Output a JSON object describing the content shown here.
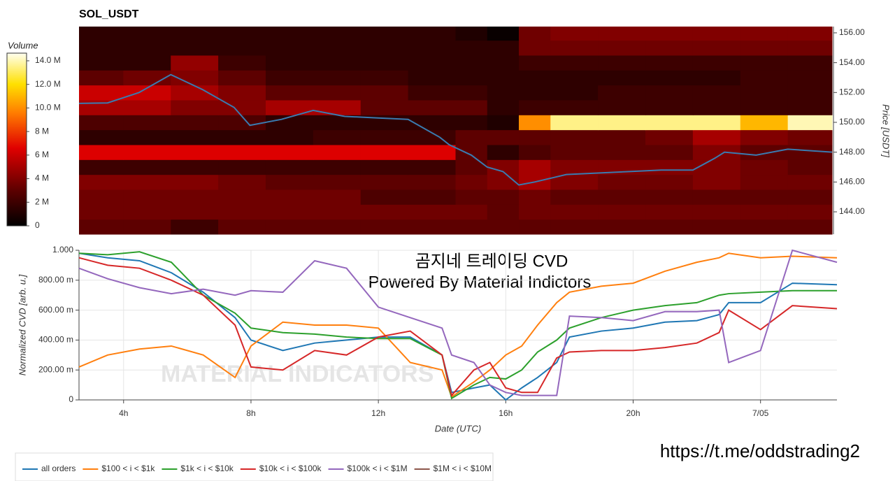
{
  "chart_data": [
    {
      "type": "heatmap",
      "title": "SOL_USDT",
      "colorbar_title": "Volume",
      "y2_label": "Price [USDT]",
      "x_bins": [
        2.6,
        4,
        5.5,
        7,
        8.5,
        10,
        11.5,
        13,
        14.5,
        15.5,
        16.5,
        17.5,
        19,
        20.5,
        22,
        23.5,
        25,
        26.4
      ],
      "y_bins": [
        142.5,
        143.5,
        144.5,
        145.5,
        146.5,
        147.5,
        148.5,
        149.5,
        150.5,
        151.5,
        152.5,
        153.5,
        154.5,
        155.5,
        156.5
      ],
      "z": [
        [
          3,
          3,
          2,
          3,
          3,
          3,
          3,
          3,
          3,
          3,
          3,
          3,
          3,
          3,
          3,
          3,
          3
        ],
        [
          3.5,
          3.5,
          3.5,
          3.5,
          3.5,
          3.5,
          3.5,
          3.5,
          3.5,
          3,
          3.5,
          3.5,
          3.5,
          3.5,
          3.5,
          3.5,
          3.5
        ],
        [
          3.5,
          3.5,
          3.5,
          3.5,
          3.5,
          3.5,
          2.5,
          2.5,
          3,
          3,
          3.5,
          3,
          3,
          3,
          3,
          3,
          3
        ],
        [
          4,
          4,
          4,
          3.5,
          3,
          3,
          3,
          3,
          3.5,
          4,
          5,
          4,
          3.5,
          3.5,
          4,
          3.5,
          3.5
        ],
        [
          2,
          2,
          2,
          2,
          2,
          2,
          2,
          2,
          3,
          4,
          5,
          4,
          4,
          4,
          4,
          3.5,
          3
        ],
        [
          6.5,
          6.5,
          6.5,
          6.5,
          6.5,
          6.5,
          6.5,
          6.5,
          3,
          1.5,
          2.5,
          3,
          3,
          3,
          4,
          3,
          3
        ],
        [
          1.5,
          1.5,
          1.5,
          1.5,
          1.5,
          2,
          2,
          2,
          3,
          3,
          3,
          3,
          3,
          3.5,
          5,
          4,
          3.5
        ],
        [
          2.5,
          2.5,
          2.5,
          2.5,
          1.5,
          1.5,
          1.5,
          1.5,
          1.5,
          1,
          10,
          13.5,
          13.5,
          13.5,
          13.5,
          11,
          14
        ],
        [
          5,
          5,
          4,
          4,
          5,
          5,
          3,
          3,
          3,
          1.5,
          2,
          2,
          2,
          2,
          2,
          2,
          2
        ],
        [
          6,
          6,
          5,
          4,
          3,
          3,
          3,
          2,
          2,
          1.5,
          1.5,
          1.5,
          2,
          2,
          2,
          2,
          2
        ],
        [
          3,
          3.5,
          4,
          3,
          2,
          2,
          2,
          1.5,
          1.5,
          1.5,
          1.5,
          1.5,
          1.5,
          1.5,
          1.5,
          2,
          2
        ],
        [
          1.5,
          1.5,
          4.5,
          2,
          1.5,
          1.5,
          1.5,
          1.5,
          1.5,
          1.5,
          2,
          2,
          2,
          2,
          2,
          2,
          2
        ],
        [
          1.5,
          1.5,
          1.5,
          1.5,
          1.5,
          1.5,
          1.5,
          1.5,
          1.5,
          1.5,
          3.5,
          3.5,
          3.5,
          3.5,
          3.5,
          3.5,
          3.5
        ],
        [
          1.5,
          1.5,
          1.5,
          1.5,
          1.5,
          1.5,
          1.5,
          1.5,
          1,
          0.3,
          3.5,
          4,
          4,
          4,
          4,
          4,
          4
        ]
      ],
      "zlim": [
        0,
        14.65
      ],
      "zticks": [
        {
          "value": 0,
          "label": "0"
        },
        {
          "value": 2,
          "label": "2 M"
        },
        {
          "value": 4,
          "label": "4 M"
        },
        {
          "value": 6,
          "label": "6 M"
        },
        {
          "value": 8,
          "label": "8 M"
        },
        {
          "value": 10,
          "label": "10.0 M"
        },
        {
          "value": 12,
          "label": "12.0 M"
        },
        {
          "value": 14,
          "label": "14.0 M"
        }
      ],
      "xlim": [
        2.6,
        26.4
      ],
      "y2lim": [
        142.5,
        156.42
      ],
      "y2ticks": [
        {
          "value": 144,
          "label": "144.00"
        },
        {
          "value": 146,
          "label": "146.00"
        },
        {
          "value": 148,
          "label": "148.00"
        },
        {
          "value": 150,
          "label": "150.00"
        },
        {
          "value": 152,
          "label": "152.00"
        },
        {
          "value": 154,
          "label": "154.00"
        },
        {
          "value": 156,
          "label": "156.00"
        }
      ],
      "x": [
        2.6,
        3.5,
        4.5,
        5.5,
        6.5,
        7.5,
        8,
        9,
        10,
        11,
        12,
        13,
        14,
        14.3,
        15,
        15.5,
        16,
        16.5,
        17,
        17.6,
        18,
        19,
        20,
        21,
        22,
        22.7,
        23,
        24,
        25,
        26.4
      ],
      "line": {
        "color": "#3a7bb0",
        "values": [
          151.27,
          151.3,
          152.0,
          153.2,
          152.2,
          151.0,
          149.8,
          150.2,
          150.8,
          150.4,
          150.3,
          150.2,
          149.0,
          148.5,
          147.8,
          147.0,
          146.7,
          145.8,
          146.0,
          146.3,
          146.5,
          146.6,
          146.7,
          146.8,
          146.8,
          147.6,
          148.0,
          147.8,
          148.2,
          148.0
        ]
      }
    },
    {
      "type": "line",
      "xlabel": "Date (UTC)",
      "ylabel": "Normalized CVD [arb. u.]",
      "annotations": [
        "곰지네 트레이딩 CVD",
        "Powered By Material Indictors"
      ],
      "watermark": "MATERIAL INDICATORS",
      "footer": "https://t.me/oddstrading2",
      "xlim": [
        2.6,
        26.4
      ],
      "xticks": [
        {
          "value": 4,
          "label": "4h"
        },
        {
          "value": 8,
          "label": "8h"
        },
        {
          "value": 12,
          "label": "12h"
        },
        {
          "value": 16,
          "label": "16h"
        },
        {
          "value": 20,
          "label": "20h"
        },
        {
          "value": 24,
          "label": "7/05"
        }
      ],
      "ylim": [
        0,
        1
      ],
      "yticks": [
        0,
        {
          "value": 0.2,
          "label": "200.00 m"
        },
        {
          "value": 0.4,
          "label": "400.00 m"
        },
        {
          "value": 0.6,
          "label": "600.00 m"
        },
        {
          "value": 0.8,
          "label": "800.00 m"
        },
        {
          "value": 1,
          "label": "1.000"
        }
      ],
      "grid": true,
      "x": [
        2.6,
        3.5,
        4.5,
        5.5,
        6.5,
        7.5,
        8,
        9,
        10,
        11,
        12,
        13,
        14,
        14.3,
        15,
        15.5,
        16,
        16.5,
        17,
        17.6,
        18,
        19,
        20,
        21,
        22,
        22.7,
        23,
        24,
        25,
        26.4
      ],
      "series": [
        {
          "name": "all orders",
          "color": "#1f77b4",
          "values": [
            0.98,
            0.95,
            0.93,
            0.85,
            0.72,
            0.55,
            0.4,
            0.33,
            0.38,
            0.4,
            0.42,
            0.42,
            0.3,
            0.05,
            0.08,
            0.1,
            0.0,
            0.08,
            0.15,
            0.25,
            0.42,
            0.46,
            0.48,
            0.52,
            0.53,
            0.57,
            0.65,
            0.65,
            0.78,
            0.77
          ]
        },
        {
          "name": "$100 < i < $1k",
          "color": "#ff7f0e",
          "values": [
            0.22,
            0.3,
            0.34,
            0.36,
            0.3,
            0.15,
            0.36,
            0.52,
            0.5,
            0.5,
            0.48,
            0.25,
            0.2,
            0.02,
            0.12,
            0.2,
            0.3,
            0.36,
            0.5,
            0.65,
            0.72,
            0.76,
            0.78,
            0.86,
            0.92,
            0.95,
            0.98,
            0.95,
            0.96,
            0.95
          ]
        },
        {
          "name": "$1k < i < $10k",
          "color": "#2ca02c",
          "values": [
            0.98,
            0.97,
            0.99,
            0.92,
            0.7,
            0.58,
            0.48,
            0.45,
            0.44,
            0.42,
            0.41,
            0.41,
            0.3,
            0.01,
            0.1,
            0.15,
            0.14,
            0.2,
            0.32,
            0.4,
            0.48,
            0.55,
            0.6,
            0.63,
            0.65,
            0.7,
            0.71,
            0.72,
            0.73,
            0.73
          ]
        },
        {
          "name": "$10k < i < $100k",
          "color": "#d62728",
          "values": [
            0.95,
            0.9,
            0.88,
            0.8,
            0.7,
            0.5,
            0.22,
            0.2,
            0.33,
            0.3,
            0.42,
            0.46,
            0.3,
            0.03,
            0.2,
            0.25,
            0.08,
            0.05,
            0.05,
            0.28,
            0.32,
            0.33,
            0.33,
            0.35,
            0.38,
            0.45,
            0.6,
            0.47,
            0.63,
            0.61
          ]
        },
        {
          "name": "$100k < i < $1M",
          "color": "#9467bd",
          "values": [
            0.88,
            0.81,
            0.75,
            0.71,
            0.74,
            0.7,
            0.73,
            0.72,
            0.93,
            0.88,
            0.62,
            0.55,
            0.48,
            0.3,
            0.25,
            0.1,
            0.05,
            0.03,
            0.03,
            0.03,
            0.56,
            0.55,
            0.53,
            0.59,
            0.59,
            0.6,
            0.25,
            0.33,
            1.0,
            0.92
          ]
        },
        {
          "name": "$1M < i < $10M",
          "color": "#8c564b",
          "values": [
            null,
            null,
            null,
            null,
            null,
            null,
            null,
            null,
            null,
            null,
            null,
            null,
            null,
            null,
            null,
            null,
            null,
            null,
            null,
            null,
            null,
            null,
            null,
            null,
            null,
            null,
            null,
            null,
            null,
            null
          ]
        }
      ]
    }
  ]
}
